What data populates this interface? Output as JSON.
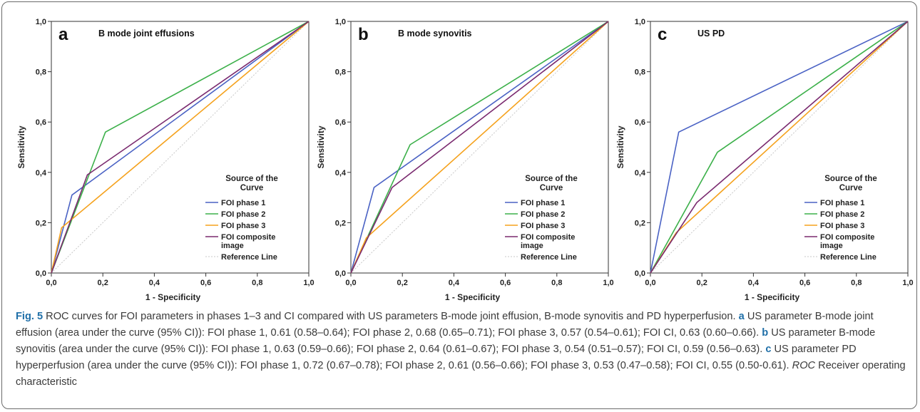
{
  "chart_data": [
    {
      "type": "line",
      "panel_letter": "a",
      "title": "B mode joint effusions",
      "xlabel": "1 - Specificity",
      "ylabel": "Sensitivity",
      "xlim": [
        0,
        1
      ],
      "ylim": [
        0,
        1
      ],
      "x_ticks": [
        "0,0",
        "0,2",
        "0,4",
        "0,6",
        "0,8",
        "1,0"
      ],
      "y_ticks": [
        "0,0",
        "0,2",
        "0,4",
        "0,6",
        "0,8",
        "1,0"
      ],
      "grid": false,
      "legend_title": "Source of the Curve",
      "legend_position": "bottom-right",
      "series": [
        {
          "name": "FOI phase 1",
          "color": "#4a62c4",
          "points": [
            [
              0,
              0
            ],
            [
              0.08,
              0.31
            ],
            [
              1,
              1
            ]
          ]
        },
        {
          "name": "FOI phase 2",
          "color": "#3cb04a",
          "points": [
            [
              0,
              0
            ],
            [
              0.21,
              0.56
            ],
            [
              1,
              1
            ]
          ]
        },
        {
          "name": "FOI phase 3",
          "color": "#f5a21d",
          "points": [
            [
              0,
              0
            ],
            [
              0.04,
              0.18
            ],
            [
              1,
              1
            ]
          ]
        },
        {
          "name": "FOI composite image",
          "color": "#7a2a6f",
          "points": [
            [
              0,
              0
            ],
            [
              0.14,
              0.39
            ],
            [
              1,
              1
            ]
          ]
        },
        {
          "name": "Reference Line",
          "color": "#c8c8c8",
          "dashed": true,
          "points": [
            [
              0,
              0
            ],
            [
              1,
              1
            ]
          ]
        }
      ]
    },
    {
      "type": "line",
      "panel_letter": "b",
      "title": "B mode synovitis",
      "xlabel": "1 - Specificity",
      "ylabel": "Sensitivity",
      "xlim": [
        0,
        1
      ],
      "ylim": [
        0,
        1
      ],
      "x_ticks": [
        "0,0",
        "0,2",
        "0,4",
        "0,6",
        "0,8",
        "1,0"
      ],
      "y_ticks": [
        "0,0",
        "0,2",
        "0,4",
        "0,6",
        "0,8",
        "1,0"
      ],
      "grid": false,
      "legend_title": "Source of the Curve",
      "legend_position": "bottom-right",
      "series": [
        {
          "name": "FOI phase 1",
          "color": "#4a62c4",
          "points": [
            [
              0,
              0
            ],
            [
              0.09,
              0.34
            ],
            [
              1,
              1
            ]
          ]
        },
        {
          "name": "FOI phase 2",
          "color": "#3cb04a",
          "points": [
            [
              0,
              0
            ],
            [
              0.23,
              0.51
            ],
            [
              1,
              1
            ]
          ]
        },
        {
          "name": "FOI phase 3",
          "color": "#f5a21d",
          "points": [
            [
              0,
              0
            ],
            [
              0.06,
              0.14
            ],
            [
              1,
              1
            ]
          ]
        },
        {
          "name": "FOI composite image",
          "color": "#7a2a6f",
          "points": [
            [
              0,
              0
            ],
            [
              0.16,
              0.34
            ],
            [
              1,
              1
            ]
          ]
        },
        {
          "name": "Reference Line",
          "color": "#c8c8c8",
          "dashed": true,
          "points": [
            [
              0,
              0
            ],
            [
              1,
              1
            ]
          ]
        }
      ]
    },
    {
      "type": "line",
      "panel_letter": "c",
      "title": "US PD",
      "xlabel": "1 - Specificity",
      "ylabel": "Sensitivity",
      "xlim": [
        0,
        1
      ],
      "ylim": [
        0,
        1
      ],
      "x_ticks": [
        "0,0",
        "0,2",
        "0,4",
        "0,6",
        "0,8",
        "1,0"
      ],
      "y_ticks": [
        "0,0",
        "0,2",
        "0,4",
        "0,6",
        "0,8",
        "1,0"
      ],
      "grid": false,
      "legend_title": "Source of the Curve",
      "legend_position": "bottom-right",
      "series": [
        {
          "name": "FOI phase 1",
          "color": "#4a62c4",
          "points": [
            [
              0,
              0
            ],
            [
              0.11,
              0.56
            ],
            [
              1,
              1
            ]
          ]
        },
        {
          "name": "FOI phase 2",
          "color": "#3cb04a",
          "points": [
            [
              0,
              0
            ],
            [
              0.26,
              0.48
            ],
            [
              1,
              1
            ]
          ]
        },
        {
          "name": "FOI phase 3",
          "color": "#f5a21d",
          "points": [
            [
              0,
              0
            ],
            [
              0.1,
              0.16
            ],
            [
              1,
              1
            ]
          ]
        },
        {
          "name": "FOI composite image",
          "color": "#7a2a6f",
          "points": [
            [
              0,
              0
            ],
            [
              0.18,
              0.28
            ],
            [
              1,
              1
            ]
          ]
        },
        {
          "name": "Reference Line",
          "color": "#c8c8c8",
          "dashed": true,
          "points": [
            [
              0,
              0
            ],
            [
              1,
              1
            ]
          ]
        }
      ]
    }
  ],
  "caption": {
    "fig_label": "Fig. 5",
    "intro": " ROC curves for FOI parameters in phases 1–3 and CI compared with US parameters B-mode joint effusion, B-mode synovitis and PD hyperperfusion. ",
    "a_label": "a",
    "a_text": " US parameter B-mode joint effusion (area under the curve (95% CI)): FOI phase 1, 0.61 (0.58–0.64); FOI phase 2, 0.68 (0.65–0.71); FOI phase 3, 0.57 (0.54–0.61); FOI CI, 0.63 (0.60–0.66). ",
    "b_label": "b",
    "b_text": " US parameter B-mode synovitis (area under the curve (95% CI)): FOI phase 1, 0.63 (0.59–0.66); FOI phase 2, 0.64 (0.61–0.67); FOI phase 3, 0.54 (0.51–0.57); FOI CI, 0.59 (0.56–0.63). ",
    "c_label": "c",
    "c_text": " US parameter PD hyperperfusion (area under the curve (95% CI)): FOI phase 1, 0.72 (0.67–0.78); FOI phase 2, 0.61 (0.56–0.66); FOI phase 3, 0.53 (0.47–0.58); FOI CI, 0.55 (0.50-0.61). ",
    "roc_abbr": "ROC",
    "roc_text": " Receiver operating characteristic"
  }
}
